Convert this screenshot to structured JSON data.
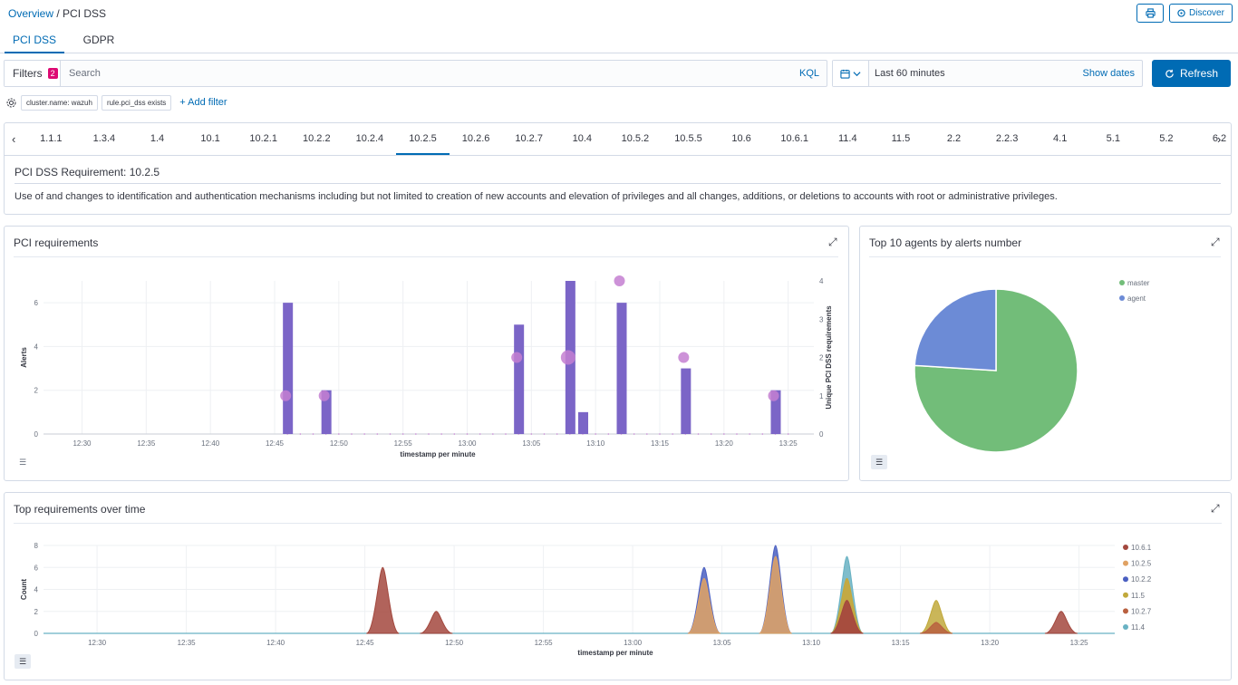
{
  "breadcrumb": {
    "overview": "Overview",
    "separator": " / ",
    "current": "PCI DSS"
  },
  "header": {
    "print_icon": "printer-icon",
    "discover_label": "Discover"
  },
  "tabs": [
    {
      "label": "PCI DSS",
      "active": true
    },
    {
      "label": "GDPR",
      "active": false
    }
  ],
  "filterbar": {
    "filters_label": "Filters",
    "filter_count": "2",
    "search_placeholder": "Search",
    "query_language": "KQL"
  },
  "datepicker": {
    "range": "Last 60 minutes",
    "show_dates": "Show dates",
    "refresh": "Refresh"
  },
  "filter_pills": [
    "cluster.name: wazuh",
    "rule.pci_dss exists"
  ],
  "add_filter": "+ Add filter",
  "requirements": {
    "tabs": [
      "1.1.1",
      "1.3.4",
      "1.4",
      "10.1",
      "10.2.1",
      "10.2.2",
      "10.2.4",
      "10.2.5",
      "10.2.6",
      "10.2.7",
      "10.4",
      "10.5.2",
      "10.5.5",
      "10.6",
      "10.6.1",
      "11.4",
      "11.5",
      "2.2",
      "2.2.3",
      "4.1",
      "5.1",
      "5.2",
      "6.2"
    ],
    "active": "10.2.5",
    "title": "PCI DSS Requirement: 10.2.5",
    "description": "Use of and changes to identification and authentication mechanisms including but not limited to creation of new accounts and elevation of privileges and all changes, additions, or deletions to accounts with root or administrative privileges."
  },
  "panels": {
    "pci": {
      "title": "PCI requirements"
    },
    "agents": {
      "title": "Top 10 agents by alerts number"
    },
    "top": {
      "title": "Top requirements over time"
    }
  },
  "colors": {
    "accent": "#006bb4",
    "bar": "#7b65c7",
    "bubble": "#c47fd1",
    "master": "#72bd79",
    "agent": "#6c8bd6"
  },
  "chart_data": [
    {
      "type": "bar",
      "title": "PCI requirements",
      "xlabel": "timestamp per minute",
      "ylabel": "Alerts",
      "y2label": "Unique PCI DSS requirements",
      "ylim": [
        0,
        7
      ],
      "y2lim": [
        0,
        4
      ],
      "yticks": [
        0,
        2,
        4,
        6
      ],
      "y2ticks": [
        0,
        1,
        2,
        3,
        4
      ],
      "xticks": [
        "12:30",
        "12:35",
        "12:40",
        "12:45",
        "12:50",
        "12:55",
        "13:00",
        "13:05",
        "13:10",
        "13:15",
        "13:20",
        "13:25"
      ],
      "bars": [
        {
          "t": "12:46",
          "value": 6
        },
        {
          "t": "12:49",
          "value": 2
        },
        {
          "t": "13:04",
          "value": 5
        },
        {
          "t": "13:08",
          "value": 7
        },
        {
          "t": "13:09",
          "value": 1
        },
        {
          "t": "13:12",
          "value": 6
        },
        {
          "t": "13:17",
          "value": 3
        },
        {
          "t": "13:24",
          "value": 2
        }
      ],
      "unique_requirements": [
        {
          "t": "12:46",
          "value": 1
        },
        {
          "t": "12:49",
          "value": 1
        },
        {
          "t": "13:04",
          "value": 2
        },
        {
          "t": "13:08",
          "value": 2
        },
        {
          "t": "13:12",
          "value": 4
        },
        {
          "t": "13:17",
          "value": 2
        },
        {
          "t": "13:24",
          "value": 1
        }
      ]
    },
    {
      "type": "pie",
      "title": "Top 10 agents by alerts number",
      "slices": [
        {
          "label": "master",
          "value": 76
        },
        {
          "label": "agent",
          "value": 24
        }
      ],
      "legend_position": "top-right"
    },
    {
      "type": "area",
      "title": "Top requirements over time",
      "xlabel": "timestamp per minute",
      "ylabel": "Count",
      "ylim": [
        0,
        8
      ],
      "yticks": [
        0,
        2,
        4,
        6,
        8
      ],
      "xticks": [
        "12:30",
        "12:35",
        "12:40",
        "12:45",
        "12:50",
        "12:55",
        "13:00",
        "13:05",
        "13:10",
        "13:15",
        "13:20",
        "13:25"
      ],
      "series": [
        {
          "name": "10.6.1",
          "color": "#a3483e",
          "points": [
            {
              "t": "12:46",
              "value": 6
            },
            {
              "t": "12:49",
              "value": 2
            },
            {
              "t": "13:12",
              "value": 3
            },
            {
              "t": "13:24",
              "value": 2
            }
          ]
        },
        {
          "name": "10.2.5",
          "color": "#e0a263",
          "points": [
            {
              "t": "13:04",
              "value": 5
            },
            {
              "t": "13:08",
              "value": 7
            },
            {
              "t": "13:12",
              "value": 5
            }
          ]
        },
        {
          "name": "10.2.2",
          "color": "#4a5fc1",
          "points": [
            {
              "t": "13:04",
              "value": 6
            },
            {
              "t": "13:08",
              "value": 8
            }
          ]
        },
        {
          "name": "11.5",
          "color": "#c1a93c",
          "points": [
            {
              "t": "13:12",
              "value": 5
            },
            {
              "t": "13:17",
              "value": 3
            }
          ]
        },
        {
          "name": "10.2.7",
          "color": "#b9603f",
          "points": [
            {
              "t": "13:12",
              "value": 3
            },
            {
              "t": "13:17",
              "value": 1
            }
          ]
        },
        {
          "name": "11.4",
          "color": "#69b2c3",
          "points": [
            {
              "t": "13:12",
              "value": 7
            }
          ]
        }
      ],
      "legend_position": "right"
    }
  ]
}
